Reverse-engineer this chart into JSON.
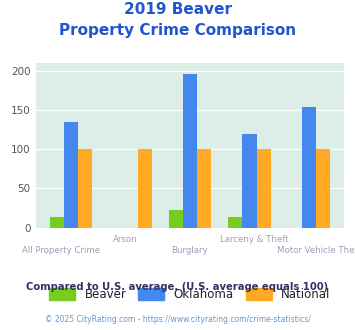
{
  "title_line1": "2019 Beaver",
  "title_line2": "Property Crime Comparison",
  "categories_row1": [
    "All Property Crime",
    "",
    "Burglary",
    "",
    "Motor Vehicle Theft"
  ],
  "categories_row2": [
    "",
    "Arson",
    "",
    "Larceny & Theft",
    ""
  ],
  "beaver": [
    14,
    0,
    22,
    14,
    0
  ],
  "oklahoma": [
    135,
    0,
    196,
    119,
    153
  ],
  "national": [
    100,
    100,
    100,
    100,
    100
  ],
  "beaver_color": "#77cc22",
  "oklahoma_color": "#4488ee",
  "national_color": "#ffaa22",
  "bg_color": "#ddeee8",
  "title_color": "#2255cc",
  "xlabel_color": "#aa99bb",
  "legend_label_color": "#222222",
  "footnote_color": "#333366",
  "copyright_color": "#6699cc",
  "ylim": [
    0,
    210
  ],
  "yticks": [
    0,
    50,
    100,
    150,
    200
  ],
  "footnote": "Compared to U.S. average. (U.S. average equals 100)",
  "copyright": "© 2025 CityRating.com - https://www.cityrating.com/crime-statistics/"
}
